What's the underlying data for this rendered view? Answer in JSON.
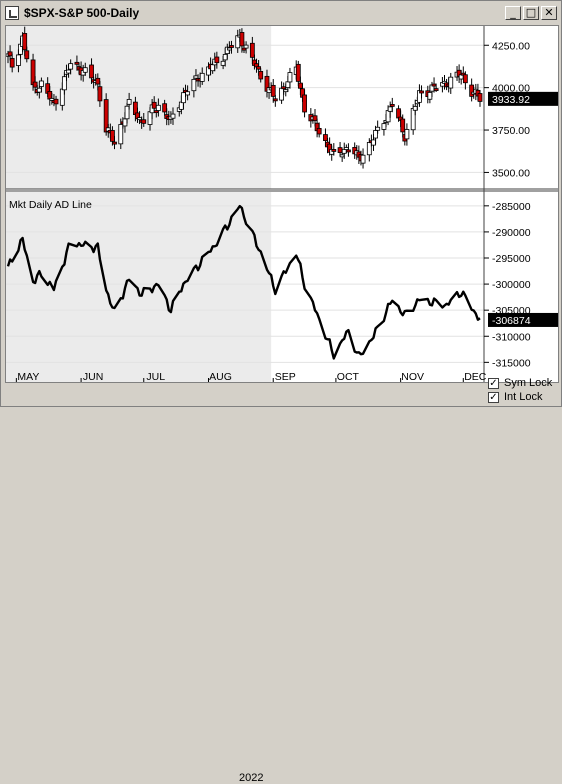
{
  "window": {
    "title": "$SPX-S&P 500-Daily",
    "buttons": {
      "minimize": "_",
      "maximize": "□",
      "close": "✕"
    }
  },
  "price_panel": {
    "last_value": "3933.92",
    "y_ticks": [
      "4250.00",
      "4000.00",
      "3750.00",
      "3500.00"
    ]
  },
  "ad_panel": {
    "title": "Mkt Daily AD Line",
    "last_value": "-306874",
    "y_ticks": [
      "-285000",
      "-290000",
      "-295000",
      "-300000",
      "-305000",
      "-310000",
      "-315000"
    ]
  },
  "x_axis": {
    "months": [
      "MAY",
      "JUN",
      "JUL",
      "AUG",
      "SEP",
      "OCT",
      "NOV",
      "DEC"
    ],
    "year": "2022"
  },
  "options": {
    "sym_lock": {
      "label": "Sym Lock",
      "checked": true
    },
    "int_lock": {
      "label": "Int Lock",
      "checked": true
    }
  },
  "colors": {
    "up_candle": "#ffffff",
    "down_candle": "#cc0000",
    "shade": "#ebebeb",
    "line": "#000000",
    "value_box": "#000000"
  },
  "chart_data": [
    {
      "type": "candlestick",
      "title": "$SPX-S&P 500-Daily",
      "ylim": [
        3420,
        4340
      ],
      "close_anchors": [
        [
          "2022-04-27",
          4185
        ],
        [
          "2022-04-29",
          4130
        ],
        [
          "2022-05-04",
          4290
        ],
        [
          "2022-05-09",
          3990
        ],
        [
          "2022-05-13",
          4020
        ],
        [
          "2022-05-19",
          3900
        ],
        [
          "2022-05-27",
          4140
        ],
        [
          "2022-06-01",
          4110
        ],
        [
          "2022-06-09",
          4020
        ],
        [
          "2022-06-13",
          3750
        ],
        [
          "2022-06-17",
          3680
        ],
        [
          "2022-06-24",
          3900
        ],
        [
          "2022-06-30",
          3800
        ],
        [
          "2022-07-08",
          3900
        ],
        [
          "2022-07-14",
          3800
        ],
        [
          "2022-07-20",
          3960
        ],
        [
          "2022-07-28",
          4070
        ],
        [
          "2022-08-05",
          4150
        ],
        [
          "2022-08-16",
          4300
        ],
        [
          "2022-08-26",
          4070
        ],
        [
          "2022-09-02",
          3930
        ],
        [
          "2022-09-12",
          4110
        ],
        [
          "2022-09-16",
          3880
        ],
        [
          "2022-09-30",
          3600
        ],
        [
          "2022-10-07",
          3650
        ],
        [
          "2022-10-12",
          3580
        ],
        [
          "2022-10-19",
          3700
        ],
        [
          "2022-10-28",
          3900
        ],
        [
          "2022-11-03",
          3720
        ],
        [
          "2022-11-10",
          3960
        ],
        [
          "2022-11-23",
          4030
        ],
        [
          "2022-11-30",
          4080
        ],
        [
          "2022-12-05",
          3980
        ],
        [
          "2022-12-09",
          3934
        ]
      ]
    },
    {
      "type": "line",
      "title": "Mkt Daily AD Line",
      "ylim": [
        -318000,
        -283500
      ],
      "points": [
        [
          "2022-04-27",
          -297000
        ],
        [
          "2022-04-29",
          -295000
        ],
        [
          "2022-05-04",
          -291500
        ],
        [
          "2022-05-09",
          -299500
        ],
        [
          "2022-05-13",
          -298000
        ],
        [
          "2022-05-19",
          -301000
        ],
        [
          "2022-05-27",
          -292000
        ],
        [
          "2022-06-01",
          -292500
        ],
        [
          "2022-06-09",
          -293000
        ],
        [
          "2022-06-13",
          -301000
        ],
        [
          "2022-06-17",
          -305500
        ],
        [
          "2022-06-24",
          -299000
        ],
        [
          "2022-06-30",
          -302000
        ],
        [
          "2022-07-08",
          -300000
        ],
        [
          "2022-07-14",
          -305000
        ],
        [
          "2022-07-20",
          -300000
        ],
        [
          "2022-07-28",
          -296000
        ],
        [
          "2022-08-05",
          -292000
        ],
        [
          "2022-08-16",
          -285000
        ],
        [
          "2022-08-26",
          -294000
        ],
        [
          "2022-09-02",
          -301000
        ],
        [
          "2022-09-12",
          -294000
        ],
        [
          "2022-09-16",
          -300000
        ],
        [
          "2022-09-30",
          -313500
        ],
        [
          "2022-10-07",
          -309000
        ],
        [
          "2022-10-12",
          -314000
        ],
        [
          "2022-10-19",
          -310000
        ],
        [
          "2022-10-28",
          -303000
        ],
        [
          "2022-11-03",
          -306000
        ],
        [
          "2022-11-10",
          -303000
        ],
        [
          "2022-11-23",
          -304000
        ],
        [
          "2022-11-30",
          -301500
        ],
        [
          "2022-12-05",
          -304500
        ],
        [
          "2022-12-09",
          -306874
        ]
      ]
    }
  ]
}
